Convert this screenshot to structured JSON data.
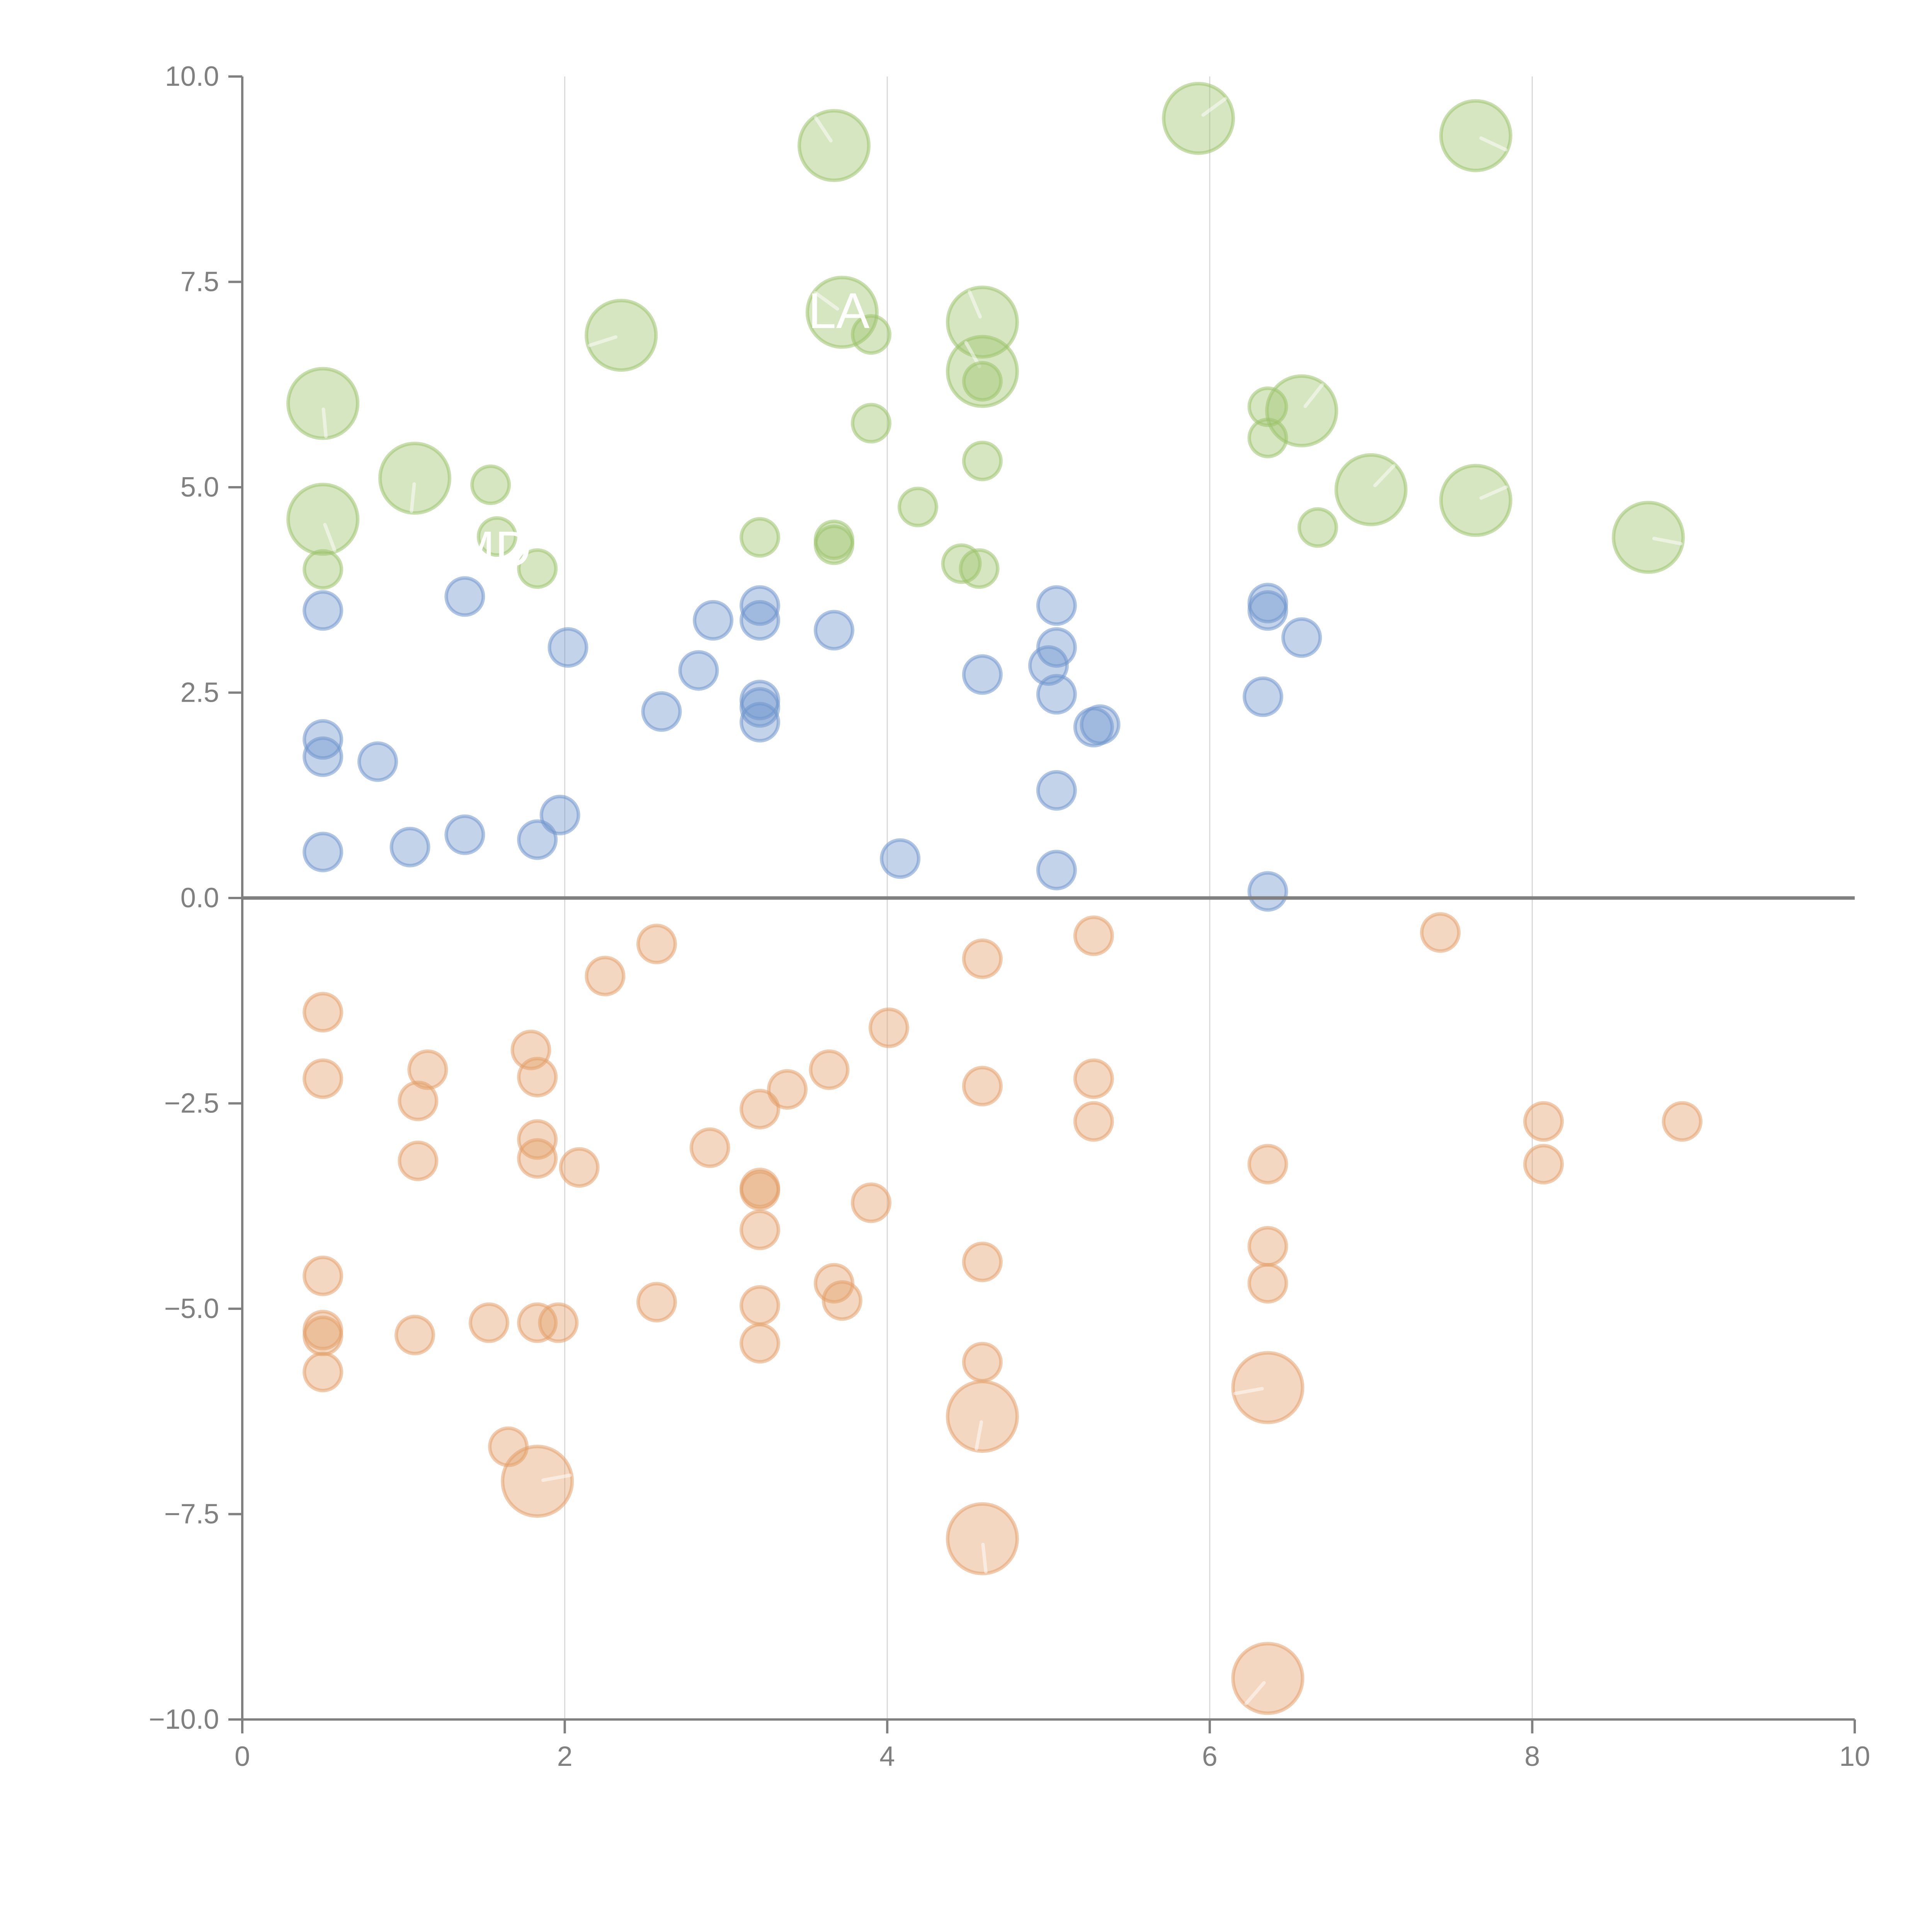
{
  "chart_data": {
    "type": "scatter",
    "subtype": "bubble",
    "title": "",
    "xlabel": "",
    "ylabel": "",
    "xlim": [
      0,
      10
    ],
    "ylim": [
      -10,
      10
    ],
    "x_ticks": [
      "0",
      "2",
      "4",
      "6",
      "8",
      "10"
    ],
    "y_ticks": [
      "10.0",
      "7.5",
      "5.0",
      "2.5",
      "0.0",
      "−2.5",
      "−5.0",
      "−7.5",
      "−10.0"
    ],
    "grid": "vertical",
    "zero_line": true,
    "legend": "none",
    "annotations": [
      {
        "text": "LA",
        "x": 3.7,
        "y": 7.1
      },
      {
        "text": "MD",
        "x": 1.55,
        "y": 4.2
      }
    ],
    "series": [
      {
        "name": "green",
        "color": "#9dc36b",
        "points": [
          {
            "x": 0.5,
            "y": 6.02,
            "size": 2
          },
          {
            "x": 0.5,
            "y": 4.61,
            "size": 2
          },
          {
            "x": 0.5,
            "y": 4.0,
            "size": 1
          },
          {
            "x": 1.07,
            "y": 5.11,
            "size": 2
          },
          {
            "x": 1.54,
            "y": 5.03,
            "size": 1
          },
          {
            "x": 1.58,
            "y": 4.4,
            "size": 1
          },
          {
            "x": 1.83,
            "y": 4.01,
            "size": 1
          },
          {
            "x": 2.35,
            "y": 6.85,
            "size": 2
          },
          {
            "x": 3.21,
            "y": 4.39,
            "size": 1
          },
          {
            "x": 3.67,
            "y": 4.36,
            "size": 1
          },
          {
            "x": 3.67,
            "y": 4.3,
            "size": 1
          },
          {
            "x": 3.67,
            "y": 9.16,
            "size": 2
          },
          {
            "x": 3.72,
            "y": 7.13,
            "size": 2
          },
          {
            "x": 3.9,
            "y": 6.86,
            "size": 1
          },
          {
            "x": 3.9,
            "y": 5.78,
            "size": 1
          },
          {
            "x": 4.19,
            "y": 4.76,
            "size": 1
          },
          {
            "x": 4.46,
            "y": 4.07,
            "size": 1
          },
          {
            "x": 4.57,
            "y": 4.01,
            "size": 1
          },
          {
            "x": 4.59,
            "y": 7.01,
            "size": 2
          },
          {
            "x": 4.59,
            "y": 6.41,
            "size": 2
          },
          {
            "x": 4.59,
            "y": 6.29,
            "size": 1
          },
          {
            "x": 4.59,
            "y": 5.32,
            "size": 1
          },
          {
            "x": 5.93,
            "y": 9.49,
            "size": 2
          },
          {
            "x": 6.36,
            "y": 5.98,
            "size": 1
          },
          {
            "x": 6.36,
            "y": 5.6,
            "size": 1
          },
          {
            "x": 6.57,
            "y": 5.93,
            "size": 2
          },
          {
            "x": 6.67,
            "y": 4.51,
            "size": 1
          },
          {
            "x": 7.0,
            "y": 4.97,
            "size": 2
          },
          {
            "x": 7.65,
            "y": 9.28,
            "size": 2
          },
          {
            "x": 7.65,
            "y": 4.84,
            "size": 2
          },
          {
            "x": 8.72,
            "y": 4.39,
            "size": 2
          }
        ]
      },
      {
        "name": "blue",
        "color": "#6f96cc",
        "points": [
          {
            "x": 0.5,
            "y": 3.5,
            "size": 1
          },
          {
            "x": 0.5,
            "y": 1.93,
            "size": 1
          },
          {
            "x": 0.5,
            "y": 1.72,
            "size": 1
          },
          {
            "x": 0.84,
            "y": 1.66,
            "size": 1
          },
          {
            "x": 0.5,
            "y": 0.56,
            "size": 1
          },
          {
            "x": 1.04,
            "y": 0.62,
            "size": 1
          },
          {
            "x": 1.38,
            "y": 3.67,
            "size": 1
          },
          {
            "x": 1.38,
            "y": 0.77,
            "size": 1
          },
          {
            "x": 1.83,
            "y": 0.71,
            "size": 1
          },
          {
            "x": 1.97,
            "y": 1.01,
            "size": 1
          },
          {
            "x": 2.02,
            "y": 3.05,
            "size": 1
          },
          {
            "x": 2.6,
            "y": 2.27,
            "size": 1
          },
          {
            "x": 2.83,
            "y": 2.77,
            "size": 1
          },
          {
            "x": 2.92,
            "y": 3.38,
            "size": 1
          },
          {
            "x": 3.21,
            "y": 3.56,
            "size": 1
          },
          {
            "x": 3.21,
            "y": 3.38,
            "size": 1
          },
          {
            "x": 3.21,
            "y": 2.41,
            "size": 1
          },
          {
            "x": 3.21,
            "y": 2.32,
            "size": 1
          },
          {
            "x": 3.21,
            "y": 2.14,
            "size": 1
          },
          {
            "x": 3.67,
            "y": 3.26,
            "size": 1
          },
          {
            "x": 4.08,
            "y": 0.48,
            "size": 1
          },
          {
            "x": 4.59,
            "y": 2.72,
            "size": 1
          },
          {
            "x": 5.0,
            "y": 2.83,
            "size": 1
          },
          {
            "x": 5.05,
            "y": 3.56,
            "size": 1
          },
          {
            "x": 5.05,
            "y": 3.05,
            "size": 1
          },
          {
            "x": 5.05,
            "y": 2.48,
            "size": 1
          },
          {
            "x": 5.05,
            "y": 1.31,
            "size": 1
          },
          {
            "x": 5.05,
            "y": 0.34,
            "size": 1
          },
          {
            "x": 5.28,
            "y": 2.08,
            "size": 1
          },
          {
            "x": 5.32,
            "y": 2.11,
            "size": 1
          },
          {
            "x": 6.33,
            "y": 2.45,
            "size": 1
          },
          {
            "x": 6.36,
            "y": 3.59,
            "size": 1
          },
          {
            "x": 6.36,
            "y": 3.5,
            "size": 1
          },
          {
            "x": 6.36,
            "y": 0.08,
            "size": 1
          },
          {
            "x": 6.57,
            "y": 3.17,
            "size": 1
          }
        ]
      },
      {
        "name": "orange",
        "color": "#e3a06a",
        "points": [
          {
            "x": 0.5,
            "y": -1.39,
            "size": 1
          },
          {
            "x": 0.5,
            "y": -2.2,
            "size": 1
          },
          {
            "x": 0.5,
            "y": -4.6,
            "size": 1
          },
          {
            "x": 0.5,
            "y": -5.26,
            "size": 1
          },
          {
            "x": 0.5,
            "y": -5.33,
            "size": 1
          },
          {
            "x": 0.5,
            "y": -5.77,
            "size": 1
          },
          {
            "x": 1.09,
            "y": -2.47,
            "size": 1
          },
          {
            "x": 1.09,
            "y": -3.2,
            "size": 1
          },
          {
            "x": 1.07,
            "y": -5.32,
            "size": 1
          },
          {
            "x": 1.15,
            "y": -2.09,
            "size": 1
          },
          {
            "x": 1.53,
            "y": -5.17,
            "size": 1
          },
          {
            "x": 1.65,
            "y": -6.68,
            "size": 1
          },
          {
            "x": 1.79,
            "y": -1.85,
            "size": 1
          },
          {
            "x": 1.83,
            "y": -2.18,
            "size": 1
          },
          {
            "x": 1.83,
            "y": -2.94,
            "size": 1
          },
          {
            "x": 1.83,
            "y": -3.17,
            "size": 1
          },
          {
            "x": 1.83,
            "y": -5.17,
            "size": 1
          },
          {
            "x": 1.83,
            "y": -7.1,
            "size": 2
          },
          {
            "x": 1.96,
            "y": -5.17,
            "size": 1
          },
          {
            "x": 2.09,
            "y": -3.28,
            "size": 1
          },
          {
            "x": 2.25,
            "y": -0.95,
            "size": 1
          },
          {
            "x": 2.57,
            "y": -0.56,
            "size": 1
          },
          {
            "x": 2.57,
            "y": -4.92,
            "size": 1
          },
          {
            "x": 2.9,
            "y": -3.04,
            "size": 1
          },
          {
            "x": 3.21,
            "y": -2.57,
            "size": 1
          },
          {
            "x": 3.21,
            "y": -3.53,
            "size": 1
          },
          {
            "x": 3.21,
            "y": -3.56,
            "size": 1
          },
          {
            "x": 3.21,
            "y": -4.04,
            "size": 1
          },
          {
            "x": 3.21,
            "y": -4.96,
            "size": 1
          },
          {
            "x": 3.21,
            "y": -5.42,
            "size": 1
          },
          {
            "x": 3.38,
            "y": -2.33,
            "size": 1
          },
          {
            "x": 3.64,
            "y": -2.09,
            "size": 1
          },
          {
            "x": 3.67,
            "y": -4.69,
            "size": 1
          },
          {
            "x": 3.72,
            "y": -4.9,
            "size": 1
          },
          {
            "x": 3.9,
            "y": -3.71,
            "size": 1
          },
          {
            "x": 4.01,
            "y": -1.58,
            "size": 1
          },
          {
            "x": 4.59,
            "y": -0.74,
            "size": 1
          },
          {
            "x": 4.59,
            "y": -2.29,
            "size": 1
          },
          {
            "x": 4.59,
            "y": -4.43,
            "size": 1
          },
          {
            "x": 4.59,
            "y": -5.65,
            "size": 1
          },
          {
            "x": 4.59,
            "y": -6.31,
            "size": 2
          },
          {
            "x": 4.59,
            "y": -7.8,
            "size": 2
          },
          {
            "x": 5.28,
            "y": -0.46,
            "size": 1
          },
          {
            "x": 5.28,
            "y": -2.2,
            "size": 1
          },
          {
            "x": 5.28,
            "y": -2.72,
            "size": 1
          },
          {
            "x": 6.36,
            "y": -3.24,
            "size": 1
          },
          {
            "x": 6.36,
            "y": -4.24,
            "size": 1
          },
          {
            "x": 6.36,
            "y": -4.69,
            "size": 1
          },
          {
            "x": 6.36,
            "y": -5.96,
            "size": 2
          },
          {
            "x": 6.36,
            "y": -9.5,
            "size": 2
          },
          {
            "x": 7.43,
            "y": -0.42,
            "size": 1
          },
          {
            "x": 8.07,
            "y": -2.72,
            "size": 1
          },
          {
            "x": 8.07,
            "y": -3.24,
            "size": 1
          },
          {
            "x": 8.93,
            "y": -2.72,
            "size": 1
          }
        ]
      }
    ]
  }
}
